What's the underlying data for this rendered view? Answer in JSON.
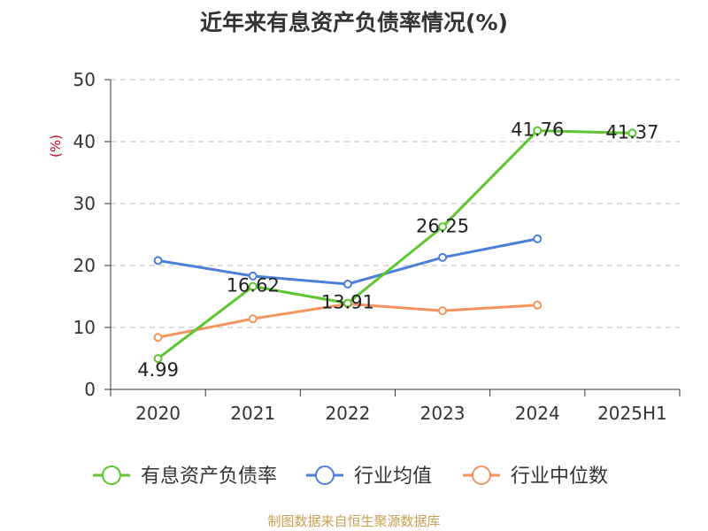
{
  "chart_data": {
    "type": "line",
    "title": "近年来有息资产负债率情况(%)",
    "ylabel": "(%)",
    "xlabel": "",
    "categories": [
      "2020",
      "2021",
      "2022",
      "2023",
      "2024",
      "2025H1"
    ],
    "ylim": [
      0,
      50
    ],
    "yticks": [
      0,
      10,
      20,
      30,
      40,
      50
    ],
    "grid": true,
    "legend_position": "bottom",
    "series": [
      {
        "name": "有息资产负债率",
        "color": "#5cc62f",
        "values": [
          4.99,
          16.62,
          13.91,
          26.25,
          41.76,
          41.37
        ],
        "labels": [
          "4.99",
          "16.62",
          "13.91",
          "26.25",
          "41.76",
          "41.37"
        ]
      },
      {
        "name": "行业均值",
        "color": "#4c7fd9",
        "values": [
          20.8,
          18.3,
          17.0,
          21.3,
          24.3,
          null
        ]
      },
      {
        "name": "行业中位数",
        "color": "#f5935d",
        "values": [
          8.4,
          11.4,
          13.8,
          12.7,
          13.6,
          null
        ]
      }
    ],
    "source": "制图数据来自恒生聚源数据库"
  }
}
